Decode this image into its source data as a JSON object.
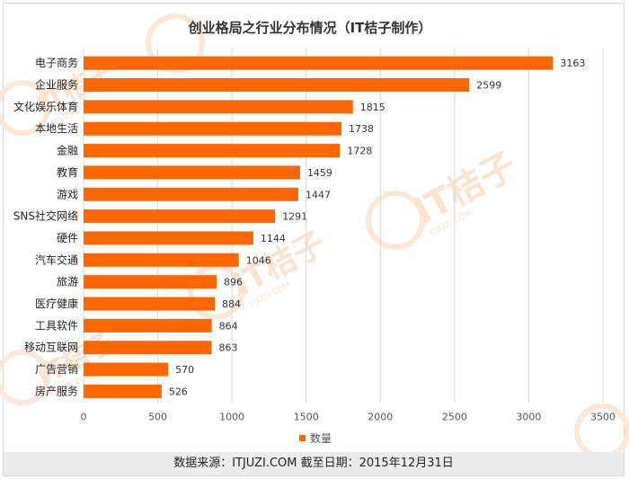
{
  "chart_data": {
    "type": "bar",
    "orientation": "horizontal",
    "title": "创业格局之行业分布情况（IT桔子制作）",
    "categories": [
      "电子商务",
      "企业服务",
      "文化娱乐体育",
      "本地生活",
      "金融",
      "教育",
      "游戏",
      "SNS社交网络",
      "硬件",
      "汽车交通",
      "旅游",
      "医疗健康",
      "工具软件",
      "移动互联网",
      "广告营销",
      "房产服务"
    ],
    "series": [
      {
        "name": "数量",
        "values": [
          3163,
          2599,
          1815,
          1738,
          1728,
          1459,
          1447,
          1291,
          1144,
          1046,
          896,
          884,
          864,
          863,
          570,
          526
        ]
      }
    ],
    "xlim": [
      0,
      3500
    ],
    "xticks": [
      0,
      500,
      1000,
      1500,
      2000,
      2500,
      3000,
      3500
    ],
    "grid": true,
    "legend_position": "bottom",
    "color": "#FF6600"
  },
  "watermark": {
    "brand": "IT桔子",
    "url": "ITJUZI.COM"
  },
  "footer": {
    "text": "数据来源：ITJUZI.COM  截至日期：2015年12月31日"
  }
}
